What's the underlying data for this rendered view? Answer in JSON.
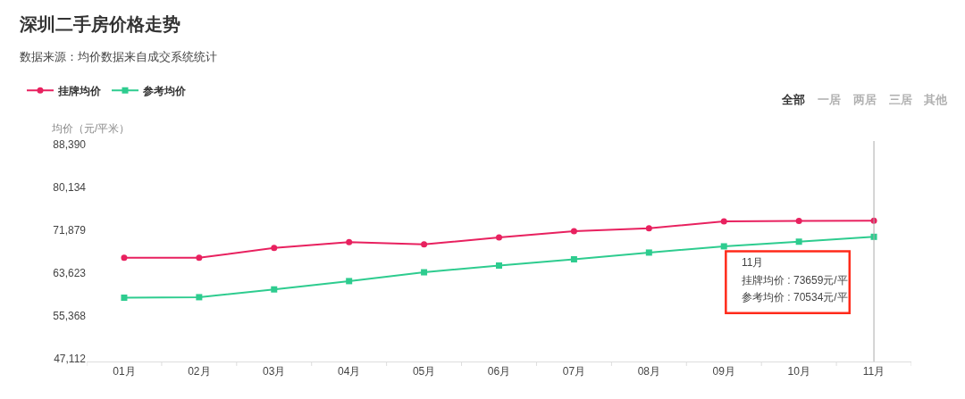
{
  "chart_data": {
    "type": "line",
    "title": "深圳二手房价格走势",
    "subtitle": "数据来源：均价数据来自成交系统统计",
    "ylabel": "均价（元/平米）",
    "categories": [
      "01月",
      "02月",
      "03月",
      "04月",
      "05月",
      "06月",
      "07月",
      "08月",
      "09月",
      "10月",
      "11月"
    ],
    "series": [
      {
        "name": "挂牌均价",
        "color": "#e8215f",
        "marker": "circle",
        "values": [
          66500,
          66500,
          68400,
          69500,
          69100,
          70400,
          71600,
          72200,
          73500,
          73600,
          73659
        ]
      },
      {
        "name": "参考均价",
        "color": "#2ecc8f",
        "marker": "square",
        "values": [
          58800,
          58900,
          60400,
          62000,
          63700,
          65000,
          66200,
          67500,
          68700,
          69600,
          70534
        ]
      }
    ],
    "ylim": [
      46500,
      89000
    ],
    "yticks": [
      {
        "value": 47112,
        "label": "47,112"
      },
      {
        "value": 55368,
        "label": "55,368"
      },
      {
        "value": 63623,
        "label": "63,623"
      },
      {
        "value": 71879,
        "label": "71,879"
      },
      {
        "value": 80134,
        "label": "80,134"
      },
      {
        "value": 88390,
        "label": "88,390"
      }
    ],
    "grid": false,
    "legend": "top left",
    "line_style": "solid",
    "ref_lines": [
      {
        "axis": "x",
        "value": "11月",
        "color": "#aaaaaa"
      }
    ],
    "annotations": [
      "11月",
      "挂牌均价 : 73659元/平",
      "参考均价 : 70534元/平",
      "全部",
      "一居",
      "两居",
      "三居",
      "其他"
    ]
  }
}
